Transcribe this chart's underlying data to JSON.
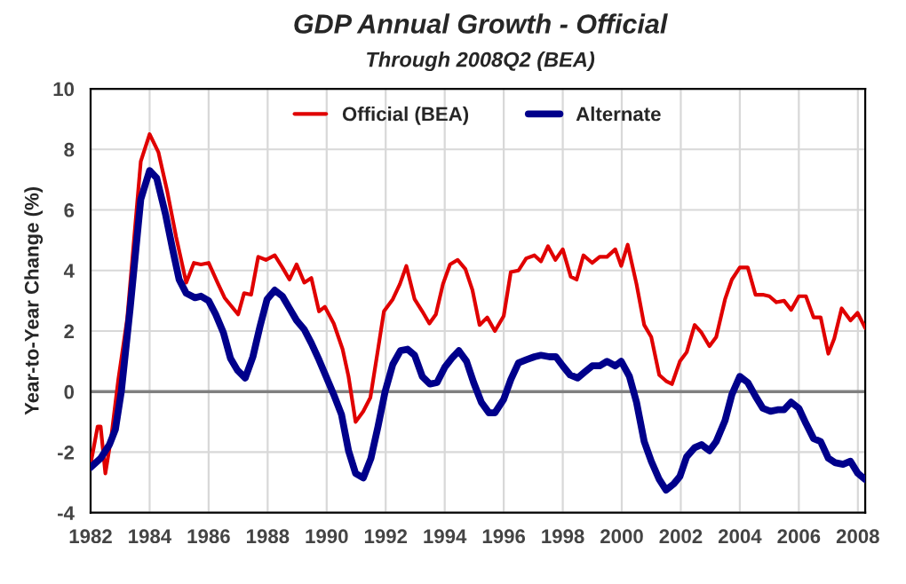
{
  "chart_data": {
    "type": "line",
    "title": "GDP Annual Growth - Official",
    "subtitle": "Through 2008Q2 (BEA)",
    "ylabel": "Year-to-Year Change (%)",
    "xlim": [
      1982,
      2008.25
    ],
    "xticks": [
      1982,
      1984,
      1986,
      1988,
      1990,
      1992,
      1994,
      1996,
      1998,
      2000,
      2002,
      2004,
      2006,
      2008
    ],
    "ylim": [
      -4,
      10
    ],
    "yticks": [
      -4,
      -2,
      0,
      2,
      4,
      6,
      8,
      10
    ],
    "grid": true,
    "legend": "top",
    "line_style": "solid",
    "ref_lines": [
      {
        "axis": "y",
        "value": 0,
        "color": "#808080"
      }
    ],
    "series": [
      {
        "name": "Official (BEA)",
        "color": "#e00000",
        "x": [
          1982.0,
          1982.24,
          1982.34,
          1982.5,
          1982.7,
          1982.94,
          1983.24,
          1983.7,
          1984.0,
          1984.3,
          1984.6,
          1984.9,
          1985.24,
          1985.5,
          1985.74,
          1986.0,
          1986.3,
          1986.54,
          1987.0,
          1987.2,
          1987.44,
          1987.68,
          1987.94,
          1988.24,
          1988.5,
          1988.74,
          1988.98,
          1989.24,
          1989.48,
          1989.74,
          1989.94,
          1990.24,
          1990.54,
          1990.74,
          1990.98,
          1991.24,
          1991.48,
          1991.74,
          1991.94,
          1992.24,
          1992.48,
          1992.7,
          1992.98,
          1993.24,
          1993.48,
          1993.7,
          1993.94,
          1994.18,
          1994.44,
          1994.7,
          1994.94,
          1995.18,
          1995.44,
          1995.7,
          1996.0,
          1996.24,
          1996.5,
          1996.76,
          1997.04,
          1997.26,
          1997.5,
          1997.75,
          1998.0,
          1998.27,
          1998.47,
          1998.7,
          1999.0,
          1999.25,
          1999.5,
          1999.78,
          1999.98,
          2000.2,
          2000.5,
          2000.76,
          2001.0,
          2001.27,
          2001.5,
          2001.7,
          2001.97,
          2002.2,
          2002.47,
          2002.7,
          2002.97,
          2003.2,
          2003.5,
          2003.73,
          2004.0,
          2004.27,
          2004.53,
          2004.78,
          2005.0,
          2005.24,
          2005.5,
          2005.74,
          2006.0,
          2006.24,
          2006.5,
          2006.74,
          2007.0,
          2007.2,
          2007.45,
          2007.75,
          2007.99,
          2008.25
        ],
        "values": [
          -2.4,
          -1.15,
          -1.15,
          -2.7,
          -1.5,
          0.4,
          2.4,
          7.6,
          8.5,
          7.9,
          6.6,
          5.1,
          3.6,
          4.25,
          4.2,
          4.25,
          3.6,
          3.1,
          2.55,
          3.25,
          3.2,
          4.45,
          4.35,
          4.5,
          4.1,
          3.7,
          4.2,
          3.6,
          3.75,
          2.65,
          2.8,
          2.25,
          1.4,
          0.5,
          -1.0,
          -0.65,
          -0.2,
          1.4,
          2.65,
          3.05,
          3.55,
          4.15,
          3.05,
          2.65,
          2.25,
          2.55,
          3.55,
          4.2,
          4.35,
          4.05,
          3.35,
          2.2,
          2.45,
          2.0,
          2.5,
          3.95,
          4.0,
          4.4,
          4.5,
          4.3,
          4.8,
          4.35,
          4.7,
          3.8,
          3.7,
          4.5,
          4.25,
          4.45,
          4.45,
          4.7,
          4.15,
          4.85,
          3.55,
          2.2,
          1.8,
          0.55,
          0.35,
          0.25,
          1.0,
          1.3,
          2.2,
          1.95,
          1.5,
          1.8,
          3.05,
          3.7,
          4.1,
          4.1,
          3.2,
          3.2,
          3.15,
          2.95,
          3.0,
          2.7,
          3.15,
          3.15,
          2.45,
          2.45,
          1.25,
          1.75,
          2.75,
          2.35,
          2.6,
          2.1
        ]
      },
      {
        "name": "Alternate",
        "color": "#00008b",
        "x": [
          1982.0,
          1982.34,
          1982.64,
          1982.84,
          1983.04,
          1983.34,
          1983.7,
          1984.0,
          1984.24,
          1984.54,
          1984.78,
          1985.0,
          1985.24,
          1985.54,
          1985.74,
          1986.0,
          1986.24,
          1986.5,
          1986.74,
          1986.98,
          1987.24,
          1987.5,
          1987.74,
          1987.98,
          1988.24,
          1988.5,
          1988.74,
          1988.98,
          1989.24,
          1989.48,
          1989.74,
          1989.98,
          1990.24,
          1990.5,
          1990.74,
          1990.98,
          1991.24,
          1991.5,
          1991.74,
          1991.98,
          1992.24,
          1992.5,
          1992.74,
          1992.98,
          1993.24,
          1993.5,
          1993.74,
          1994.0,
          1994.24,
          1994.48,
          1994.74,
          1994.98,
          1995.24,
          1995.5,
          1995.7,
          1996.0,
          1996.24,
          1996.5,
          1996.76,
          1997.04,
          1997.26,
          1997.55,
          1997.77,
          1998.0,
          1998.25,
          1998.5,
          1998.75,
          1999.0,
          1999.25,
          1999.5,
          1999.78,
          1999.98,
          2000.26,
          2000.5,
          2000.76,
          2001.0,
          2001.27,
          2001.5,
          2001.76,
          2001.97,
          2002.2,
          2002.47,
          2002.7,
          2002.97,
          2003.2,
          2003.5,
          2003.73,
          2004.0,
          2004.27,
          2004.53,
          2004.78,
          2005.04,
          2005.28,
          2005.5,
          2005.74,
          2006.0,
          2006.24,
          2006.5,
          2006.74,
          2007.0,
          2007.24,
          2007.5,
          2007.75,
          2008.0,
          2008.25
        ],
        "values": [
          -2.5,
          -2.2,
          -1.75,
          -1.25,
          0.0,
          2.75,
          6.35,
          7.3,
          7.05,
          5.85,
          4.7,
          3.7,
          3.25,
          3.1,
          3.15,
          3.0,
          2.55,
          1.95,
          1.1,
          0.7,
          0.45,
          1.15,
          2.15,
          3.05,
          3.35,
          3.15,
          2.75,
          2.35,
          2.05,
          1.6,
          1.05,
          0.5,
          -0.1,
          -0.75,
          -1.95,
          -2.7,
          -2.85,
          -2.2,
          -1.15,
          0.0,
          0.9,
          1.35,
          1.4,
          1.2,
          0.5,
          0.25,
          0.3,
          0.8,
          1.1,
          1.35,
          1.0,
          0.3,
          -0.35,
          -0.7,
          -0.7,
          -0.25,
          0.4,
          0.95,
          1.05,
          1.15,
          1.2,
          1.15,
          1.15,
          0.85,
          0.55,
          0.45,
          0.65,
          0.85,
          0.85,
          1.0,
          0.85,
          1.0,
          0.5,
          -0.35,
          -1.65,
          -2.3,
          -2.9,
          -3.25,
          -3.05,
          -2.8,
          -2.15,
          -1.85,
          -1.75,
          -1.95,
          -1.65,
          -0.95,
          -0.1,
          0.5,
          0.3,
          -0.15,
          -0.55,
          -0.65,
          -0.6,
          -0.6,
          -0.35,
          -0.55,
          -1.05,
          -1.55,
          -1.65,
          -2.2,
          -2.35,
          -2.4,
          -2.3,
          -2.7,
          -2.9
        ]
      }
    ]
  }
}
